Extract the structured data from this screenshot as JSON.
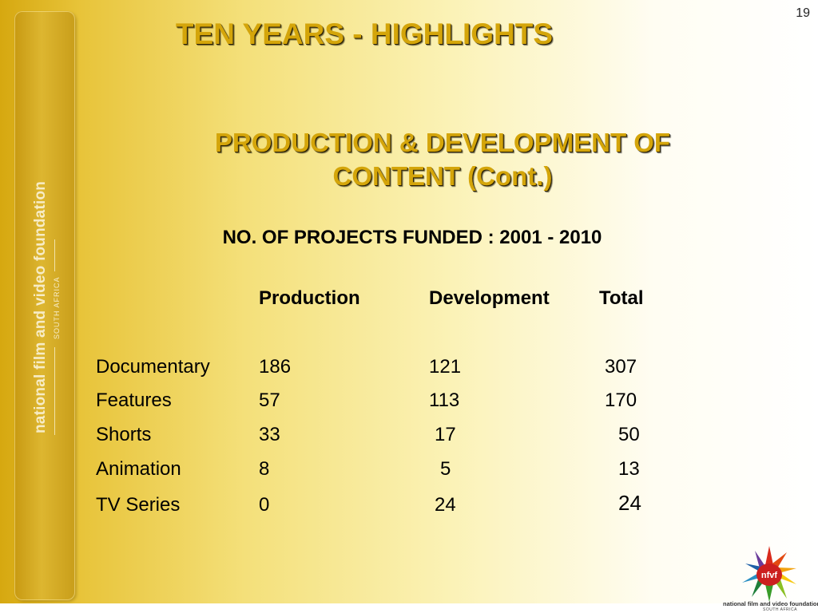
{
  "slide_number": "19",
  "title": "TEN YEARS - HIGHLIGHTS",
  "subtitle_line1": "PRODUCTION & DEVELOPMENT OF",
  "subtitle_line2": "CONTENT (Cont.)",
  "table_heading": "NO. OF PROJECTS FUNDED : 2001 - 2010",
  "table": {
    "columns": [
      "Production",
      "Development",
      "Total"
    ],
    "rows": [
      {
        "name": "Documentary",
        "production": "186",
        "development": "121",
        "total": "307"
      },
      {
        "name": "Features",
        "production": "57",
        "development": "113",
        "total": "170"
      },
      {
        "name": "Shorts",
        "production": "33",
        "development": "17",
        "total": "50"
      },
      {
        "name": "Animation",
        "production": "8",
        "development": "5",
        "total": "13"
      },
      {
        "name": "TV Series",
        "production": "0",
        "development": "24",
        "total": "24"
      }
    ]
  },
  "sidebar": {
    "brand_name": "national film and video foundation",
    "brand_sub": "SOUTH AFRICA"
  },
  "logo": {
    "monogram": "nfvf",
    "caption": "national film and video foundation",
    "sub": "SOUTH AFRICA"
  },
  "colors": {
    "title_gold": "#d4a50a",
    "background_gold": "#d6a810"
  }
}
